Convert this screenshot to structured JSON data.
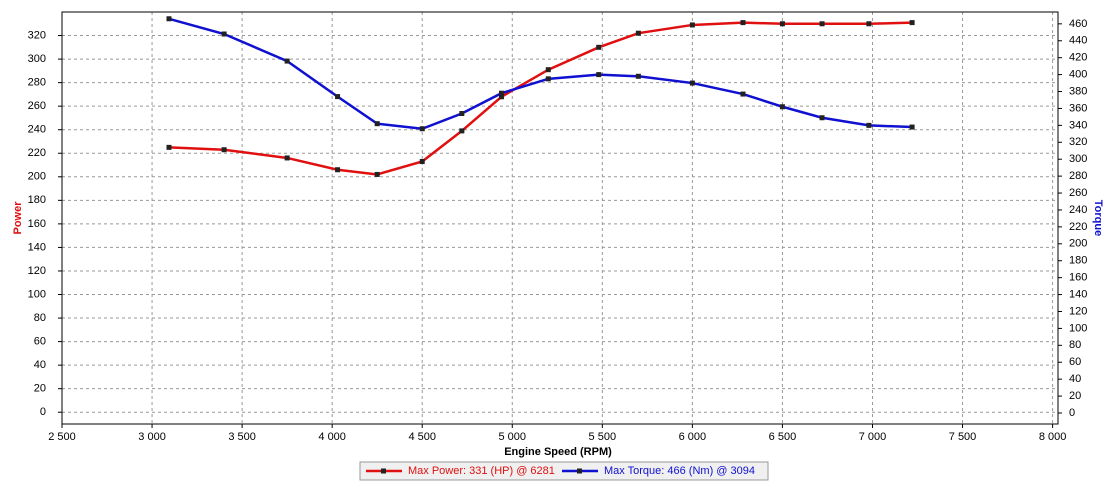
{
  "chart_data": {
    "type": "line",
    "x_label": "Engine Speed (RPM)",
    "y_label": "Power",
    "y2_label": "Torque",
    "x": [
      3094,
      3400,
      3750,
      4030,
      4250,
      4500,
      4720,
      4940,
      5200,
      5480,
      5700,
      6000,
      6281,
      6500,
      6720,
      6980,
      7220
    ],
    "series": [
      {
        "name": "Max Power: 331 (HP) @ 6281",
        "color": "#e01010",
        "axis": "y",
        "values": [
          225,
          223,
          216,
          206,
          202,
          213,
          239,
          268,
          291,
          310,
          322,
          329,
          331,
          330,
          330,
          330,
          331
        ]
      },
      {
        "name": "Max Torque: 466 (Nm) @ 3094",
        "color": "#1010d0",
        "axis": "y2",
        "values": [
          466,
          448,
          416,
          374,
          342,
          336,
          354,
          378,
          395,
          400,
          398,
          390,
          377,
          362,
          349,
          340,
          338
        ]
      }
    ],
    "xlim": [
      2500,
      8030
    ],
    "xticks": [
      {
        "value": 2500,
        "label": "2 500"
      },
      {
        "value": 3000,
        "label": "3 000"
      },
      {
        "value": 3500,
        "label": "3 500"
      },
      {
        "value": 4000,
        "label": "4 000"
      },
      {
        "value": 4500,
        "label": "4 500"
      },
      {
        "value": 5000,
        "label": "5 000"
      },
      {
        "value": 5500,
        "label": "5 500"
      },
      {
        "value": 6000,
        "label": "6 000"
      },
      {
        "value": 6500,
        "label": "6 500"
      },
      {
        "value": 7000,
        "label": "7 000"
      },
      {
        "value": 7500,
        "label": "7 500"
      },
      {
        "value": 8000,
        "label": "8 000"
      }
    ],
    "ylim": [
      -10,
      340
    ],
    "yticks": [
      0,
      20,
      40,
      60,
      80,
      100,
      120,
      140,
      160,
      180,
      200,
      220,
      240,
      260,
      280,
      300,
      320
    ],
    "y2lim": [
      -13,
      474
    ],
    "y2ticks": [
      0,
      20,
      40,
      60,
      80,
      100,
      120,
      140,
      160,
      180,
      200,
      220,
      240,
      260,
      280,
      300,
      320,
      340,
      360,
      380,
      400,
      420,
      440,
      460
    ],
    "grid": true
  }
}
